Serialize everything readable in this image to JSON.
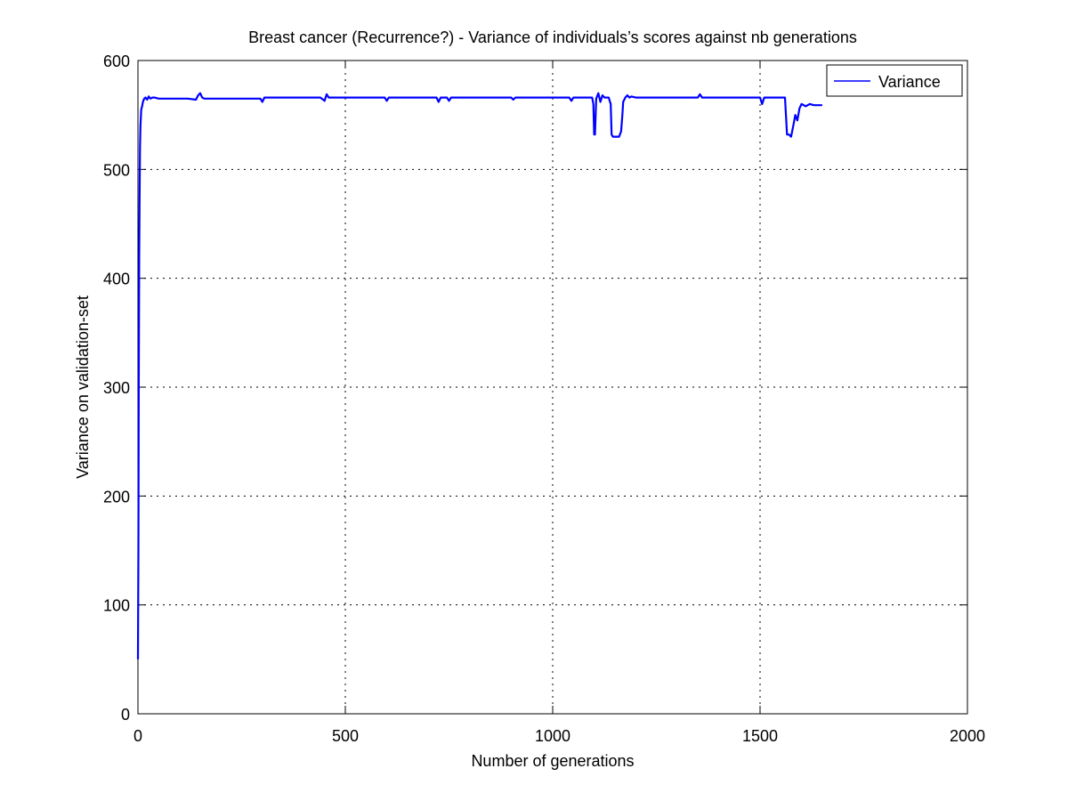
{
  "chart_data": {
    "type": "line",
    "title": "Breast cancer (Recurrence?) - Variance of individuals’s scores against nb generations",
    "xlabel": "Number of generations",
    "ylabel": "Variance on validation-set",
    "xlim": [
      0,
      2000
    ],
    "ylim": [
      0,
      600
    ],
    "xticks": [
      0,
      500,
      1000,
      1500,
      2000
    ],
    "yticks": [
      0,
      100,
      200,
      300,
      400,
      500,
      600
    ],
    "xtick_labels": [
      "0",
      "500",
      "1000",
      "1500",
      "2000"
    ],
    "ytick_labels": [
      "0",
      "100",
      "200",
      "300",
      "400",
      "500",
      "600"
    ],
    "grid": true,
    "legend": {
      "position": "top-right",
      "entries": [
        "Variance"
      ]
    },
    "colors": {
      "series": "#0000ff",
      "axes": "#000000",
      "background": "#ffffff"
    },
    "series": [
      {
        "name": "Variance",
        "x": [
          0,
          1,
          2,
          3,
          4,
          5,
          6,
          8,
          10,
          12,
          15,
          18,
          22,
          26,
          30,
          35,
          40,
          50,
          60,
          80,
          100,
          120,
          140,
          145,
          150,
          155,
          160,
          200,
          250,
          295,
          300,
          305,
          350,
          400,
          440,
          450,
          455,
          460,
          500,
          560,
          595,
          600,
          605,
          650,
          700,
          720,
          725,
          730,
          745,
          750,
          755,
          800,
          850,
          900,
          905,
          910,
          950,
          1000,
          1040,
          1045,
          1050,
          1090,
          1095,
          1098,
          1100,
          1102,
          1105,
          1110,
          1115,
          1120,
          1125,
          1130,
          1135,
          1140,
          1142,
          1145,
          1150,
          1155,
          1160,
          1165,
          1168,
          1170,
          1175,
          1180,
          1185,
          1190,
          1200,
          1210,
          1220,
          1250,
          1300,
          1350,
          1355,
          1360,
          1400,
          1450,
          1500,
          1505,
          1510,
          1520,
          1550,
          1555,
          1560,
          1565,
          1570,
          1575,
          1580,
          1585,
          1590,
          1595,
          1600,
          1610,
          1620,
          1630,
          1640,
          1650
        ],
        "values": [
          50,
          150,
          300,
          420,
          480,
          520,
          540,
          555,
          558,
          562,
          565,
          566,
          564,
          567,
          565,
          566,
          566,
          565,
          565,
          565,
          565,
          565,
          564,
          568,
          570,
          566,
          565,
          565,
          565,
          565,
          562,
          566,
          566,
          566,
          566,
          563,
          569,
          566,
          566,
          566,
          566,
          563,
          566,
          566,
          566,
          566,
          562,
          566,
          566,
          563,
          566,
          566,
          566,
          566,
          564,
          566,
          566,
          566,
          566,
          563,
          566,
          566,
          566,
          560,
          532,
          532,
          565,
          570,
          562,
          568,
          566,
          566,
          566,
          560,
          532,
          530,
          530,
          530,
          530,
          535,
          550,
          562,
          566,
          568,
          566,
          567,
          566,
          566,
          566,
          566,
          566,
          566,
          569,
          566,
          566,
          566,
          566,
          560,
          566,
          566,
          566,
          566,
          566,
          532,
          532,
          530,
          540,
          550,
          545,
          556,
          560,
          558,
          560,
          559,
          559,
          559
        ]
      }
    ]
  }
}
